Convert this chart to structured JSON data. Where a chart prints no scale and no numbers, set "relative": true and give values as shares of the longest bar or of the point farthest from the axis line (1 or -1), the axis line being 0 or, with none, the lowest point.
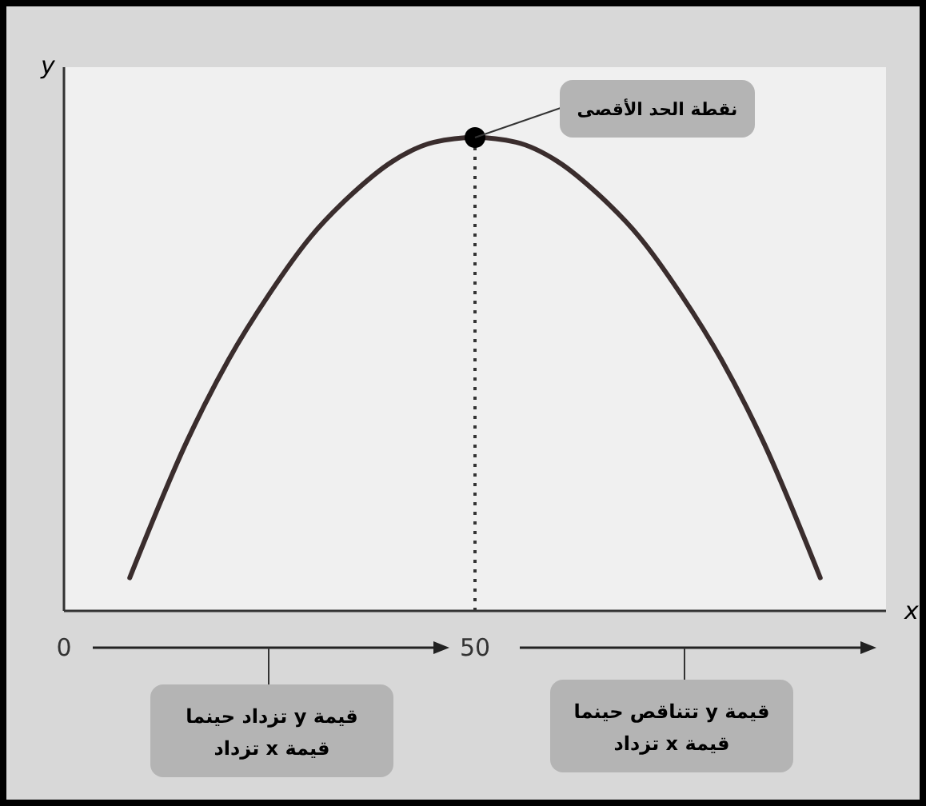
{
  "chart_data": {
    "type": "line",
    "relative": true,
    "xlabel": "x",
    "ylabel": "y",
    "xlim": [
      0,
      100
    ],
    "xticks": [
      0,
      50
    ],
    "tick_labels": "x",
    "series": [
      {
        "type": "line",
        "color": "#3a2d2d",
        "marker": "none",
        "line_style": "solid",
        "x": [
          8,
          15,
          20,
          25,
          30,
          35,
          40,
          45,
          50,
          55,
          60,
          65,
          70,
          75,
          80,
          85,
          92
        ],
        "values": [
          0.07,
          0.36,
          0.53,
          0.67,
          0.79,
          0.88,
          0.95,
          0.99,
          1,
          0.99,
          0.95,
          0.88,
          0.79,
          0.67,
          0.53,
          0.36,
          0.07
        ]
      },
      {
        "type": "scatter",
        "color": "#000000",
        "marker": "circle",
        "x": [
          50
        ],
        "values": [
          1
        ]
      }
    ],
    "ref_lines": [
      {
        "axis": "x",
        "value": 50,
        "color": "#333333",
        "line_style": "dotted"
      }
    ],
    "annotations": [
      {
        "text": "نقطة الحد الأقصى",
        "x": 50,
        "y": 1
      },
      "قيمة y تزداد حينما\nقيمة x تزداد",
      "قيمة y تتناقص حينما\nقيمة x تزداد"
    ]
  }
}
